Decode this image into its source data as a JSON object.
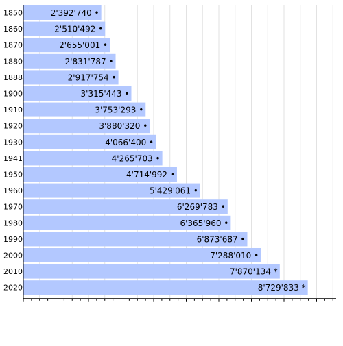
{
  "chart_data": {
    "type": "bar",
    "orientation": "horizontal",
    "title": "",
    "xlabel": "",
    "ylabel": "",
    "bar_color": "#b3c8ff",
    "grid": true,
    "xlim": [
      0,
      9600000
    ],
    "categories": [
      "1850",
      "1860",
      "1870",
      "1880",
      "1888",
      "1900",
      "1910",
      "1920",
      "1930",
      "1941",
      "1950",
      "1960",
      "1970",
      "1980",
      "1990",
      "2000",
      "2010",
      "2020"
    ],
    "values": [
      2392740,
      2510492,
      2655001,
      2831787,
      2917754,
      3315443,
      3753293,
      3880320,
      4066400,
      4265703,
      4714992,
      5429061,
      6269783,
      6365960,
      6873687,
      7288010,
      7870134,
      8729833
    ],
    "labels": [
      "2'392'740 •",
      "2'510'492 •",
      "2'655'001 •",
      "2'831'787 •",
      "2'917'754 •",
      "3'315'443 •",
      "3'753'293 •",
      "3'880'320 •",
      "4'066'400 •",
      "4'265'703 •",
      "4'714'992 •",
      "5'429'061 •",
      "6'269'783 •",
      "6'365'960 •",
      "6'873'687 •",
      "7'288'010 •",
      "7'870'134 *",
      "8'729'833 *"
    ]
  }
}
